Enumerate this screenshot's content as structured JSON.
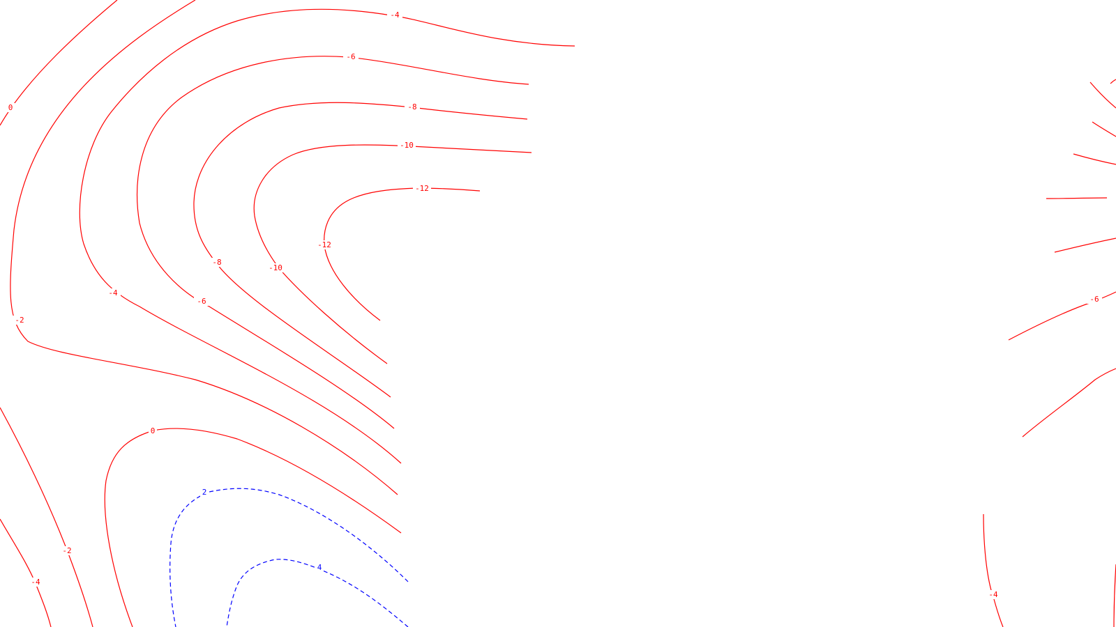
{
  "chart_data": {
    "type": "contour",
    "title": "",
    "xlabel": "",
    "ylabel": "",
    "colors": {
      "negative": "#ff0000",
      "positive": "#0000ff"
    },
    "line_styles": {
      "negative": "solid",
      "positive": "dashed"
    },
    "levels_shown": [
      -12,
      -10,
      -8,
      -6,
      -4,
      -2,
      0,
      2,
      4
    ],
    "contour_labels": [
      {
        "id": "lbl-a",
        "text": "-4"
      },
      {
        "id": "lbl-b",
        "text": "-6"
      },
      {
        "id": "lbl-c",
        "text": "-8"
      },
      {
        "id": "lbl-d",
        "text": "-10"
      },
      {
        "id": "lbl-e",
        "text": "-12"
      },
      {
        "id": "lbl-f",
        "text": "0"
      },
      {
        "id": "lbl-g",
        "text": "-2"
      },
      {
        "id": "lbl-h",
        "text": "-4"
      },
      {
        "id": "lbl-i",
        "text": "-6"
      },
      {
        "id": "lbl-j",
        "text": "-8"
      },
      {
        "id": "lbl-k",
        "text": "-10"
      },
      {
        "id": "lbl-l",
        "text": "-12"
      },
      {
        "id": "lbl-m",
        "text": "0"
      },
      {
        "id": "lbl-n",
        "text": "2"
      },
      {
        "id": "lbl-o",
        "text": "4"
      },
      {
        "id": "lbl-p",
        "text": "-2"
      },
      {
        "id": "lbl-q",
        "text": "-4"
      },
      {
        "id": "lbl-r",
        "text": "-6"
      },
      {
        "id": "lbl-s",
        "text": "-4"
      }
    ]
  }
}
